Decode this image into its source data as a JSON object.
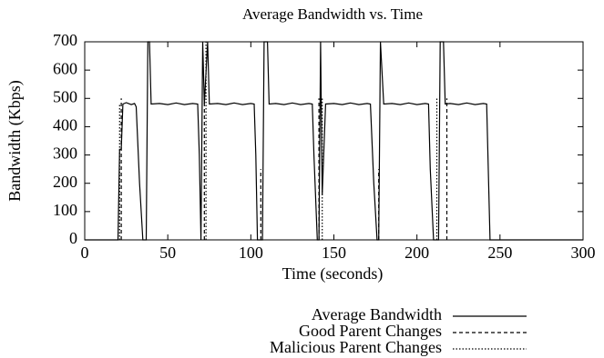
{
  "chart_data": {
    "type": "line",
    "title": "Average Bandwidth vs. Time",
    "x_label": "Time (seconds)",
    "y_label": "Bandwidth (Kbps)",
    "xlim": [
      0,
      300
    ],
    "xticks": [
      0,
      50,
      100,
      150,
      200,
      250,
      300
    ],
    "ylim": [
      0,
      700
    ],
    "yticks": [
      0,
      100,
      200,
      300,
      400,
      500,
      600,
      700
    ],
    "grid": false,
    "legend": "below",
    "series": [
      {
        "name": "Average Bandwidth",
        "color": "#000000",
        "dash": "none",
        "x": [
          0,
          20,
          21,
          22,
          23,
          25,
          28,
          30,
          31,
          33,
          35,
          37,
          38,
          39,
          40,
          45,
          50,
          55,
          60,
          65,
          68,
          69,
          70,
          71,
          72,
          74,
          75,
          80,
          85,
          90,
          95,
          100,
          102,
          103,
          104,
          107,
          108,
          110,
          111,
          115,
          120,
          125,
          130,
          135,
          137,
          138,
          140,
          141,
          142,
          143,
          145,
          150,
          155,
          160,
          165,
          170,
          172,
          174,
          176,
          177,
          178,
          180,
          185,
          190,
          195,
          200,
          205,
          207,
          208,
          210,
          213,
          214,
          216,
          217,
          220,
          225,
          230,
          235,
          240,
          242,
          244,
          300
        ],
        "values": [
          0,
          0,
          320,
          320,
          480,
          485,
          478,
          482,
          470,
          200,
          0,
          0,
          700,
          700,
          480,
          482,
          478,
          484,
          478,
          482,
          480,
          300,
          0,
          700,
          480,
          700,
          480,
          482,
          478,
          484,
          478,
          482,
          480,
          300,
          0,
          0,
          700,
          700,
          480,
          482,
          478,
          484,
          478,
          482,
          480,
          300,
          0,
          0,
          700,
          160,
          480,
          482,
          478,
          484,
          478,
          482,
          480,
          200,
          0,
          0,
          700,
          480,
          482,
          478,
          484,
          478,
          482,
          480,
          250,
          0,
          0,
          700,
          700,
          480,
          482,
          478,
          484,
          478,
          482,
          480,
          0,
          0
        ]
      },
      {
        "name": "Good Parent Changes",
        "color": "#000000",
        "dash": "4,3",
        "x": [
          22,
          22,
          22,
          72,
          72,
          72,
          106,
          106,
          106,
          141,
          141,
          141,
          177,
          177,
          177,
          218,
          218
        ],
        "values": [
          0,
          500,
          null,
          0,
          500,
          null,
          0,
          250,
          null,
          0,
          500,
          null,
          0,
          250,
          null,
          0,
          500
        ]
      },
      {
        "name": "Malicious Parent Changes",
        "color": "#000000",
        "dash": "1.5,2",
        "x": [
          21,
          21,
          21,
          73,
          73,
          73,
          143,
          143,
          143,
          212,
          212
        ],
        "values": [
          0,
          480,
          null,
          0,
          700,
          null,
          0,
          500,
          null,
          0,
          500
        ]
      }
    ]
  }
}
